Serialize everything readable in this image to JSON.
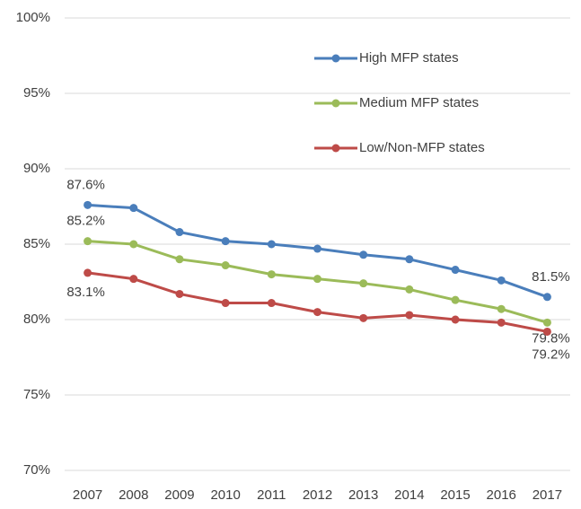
{
  "chart_data": {
    "type": "line",
    "categories": [
      "2007",
      "2008",
      "2009",
      "2010",
      "2011",
      "2012",
      "2013",
      "2014",
      "2015",
      "2016",
      "2017"
    ],
    "series": [
      {
        "name": "High MFP states",
        "color": "#4a7ebb",
        "values": [
          87.6,
          87.4,
          85.8,
          85.2,
          85.0,
          84.7,
          84.3,
          84.0,
          83.3,
          82.6,
          81.5
        ],
        "value_labels": [
          "87.6%",
          null,
          null,
          null,
          null,
          null,
          null,
          null,
          null,
          null,
          "81.5%"
        ]
      },
      {
        "name": "Medium MFP states",
        "color": "#9bbb59",
        "values": [
          85.2,
          85.0,
          84.0,
          83.6,
          83.0,
          82.7,
          82.4,
          82.0,
          81.3,
          80.7,
          79.8
        ],
        "value_labels": [
          "85.2%",
          null,
          null,
          null,
          null,
          null,
          null,
          null,
          null,
          null,
          "79.8%"
        ]
      },
      {
        "name": "Low/Non-MFP states",
        "color": "#be4b48",
        "values": [
          83.1,
          82.7,
          81.7,
          81.1,
          81.1,
          80.5,
          80.1,
          80.3,
          80.0,
          79.8,
          79.2
        ],
        "value_labels": [
          "83.1%",
          null,
          null,
          null,
          null,
          null,
          null,
          null,
          null,
          null,
          "79.2%"
        ]
      }
    ],
    "ylim": [
      70,
      100
    ],
    "yticks": [
      {
        "value": 70,
        "label": "70%"
      },
      {
        "value": 75,
        "label": "75%"
      },
      {
        "value": 80,
        "label": "80%"
      },
      {
        "value": 85,
        "label": "85%"
      },
      {
        "value": 90,
        "label": "90%"
      },
      {
        "value": 95,
        "label": "95%"
      },
      {
        "value": 100,
        "label": "100%"
      }
    ],
    "grid": true,
    "legend": "top"
  }
}
